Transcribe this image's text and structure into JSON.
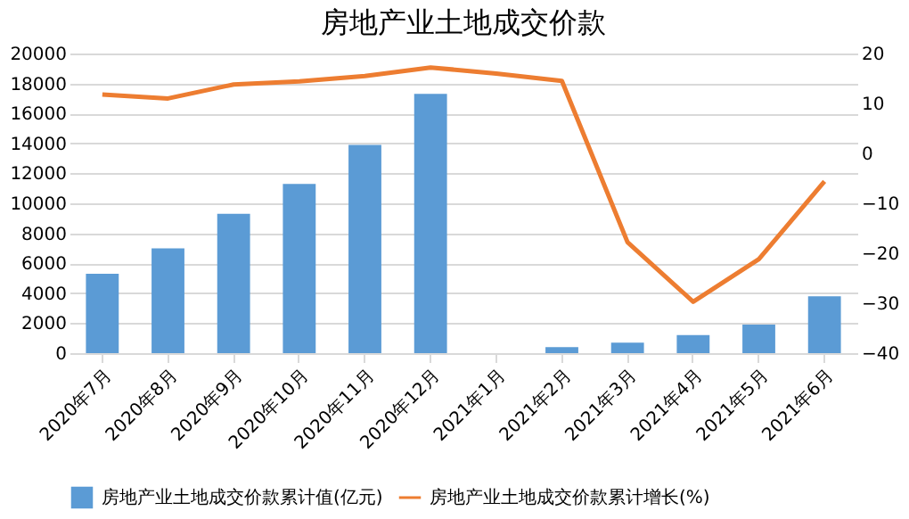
{
  "chart_data": {
    "type": "bar",
    "title": "房地产业土地成交价款",
    "categories": [
      "2020年7月",
      "2020年8月",
      "2020年9月",
      "2020年10月",
      "2020年11月",
      "2020年12月",
      "2021年1月",
      "2021年2月",
      "2021年3月",
      "2021年4月",
      "2021年5月",
      "2021年6月"
    ],
    "series": [
      {
        "name": "房地产业土地成交价款累计值(亿元)",
        "color": "#5b9bd5",
        "values": [
          5300,
          7000,
          9300,
          11300,
          13900,
          17300,
          null,
          400,
          700,
          1200,
          1900,
          3800
        ]
      },
      {
        "name": "房地产业土地成交价款累计增长(%)",
        "type": "line",
        "axis": "y2",
        "color": "#ed7d31",
        "values": [
          11.8,
          11,
          13.8,
          14.4,
          15.5,
          17.2,
          16,
          14.5,
          -17.8,
          -29.7,
          -21.2,
          -5.6
        ]
      }
    ],
    "ylim": [
      0,
      20000
    ],
    "yticks": [
      0,
      2000,
      4000,
      6000,
      8000,
      10000,
      12000,
      14000,
      16000,
      18000,
      20000
    ],
    "y2lim": [
      -40,
      20
    ],
    "y2ticks": [
      -40,
      -30,
      -20,
      -10,
      0,
      10,
      20
    ],
    "grid": "y",
    "legend": "bottom",
    "marker": "none",
    "line_style": "solid"
  }
}
